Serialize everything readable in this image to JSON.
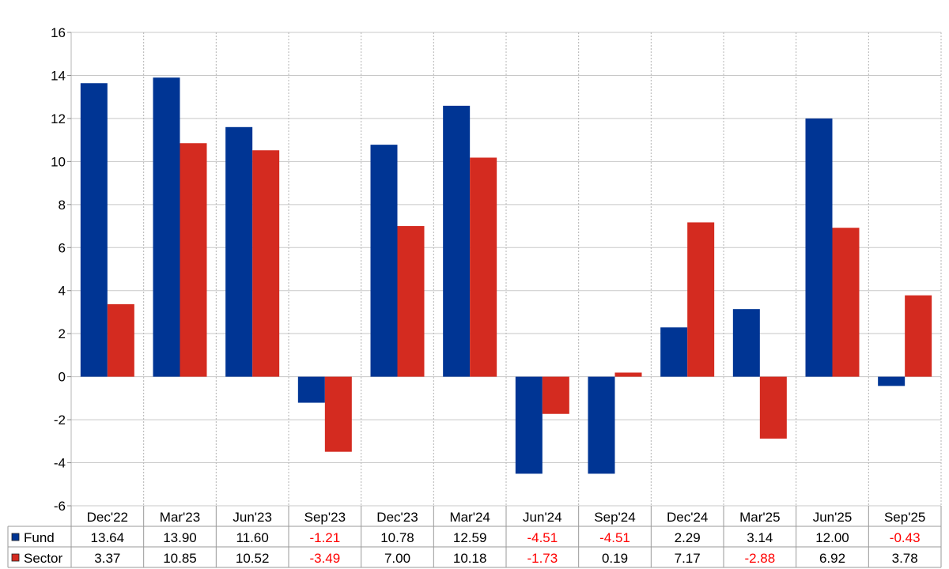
{
  "chart_data": {
    "type": "bar",
    "categories": [
      "Dec'22",
      "Mar'23",
      "Jun'23",
      "Sep'23",
      "Dec'23",
      "Mar'24",
      "Jun'24",
      "Sep'24",
      "Dec'24",
      "Mar'25",
      "Jun'25",
      "Sep'25"
    ],
    "series": [
      {
        "name": "Fund",
        "color": "#003594",
        "values": [
          13.64,
          13.9,
          11.6,
          -1.21,
          10.78,
          12.59,
          -4.51,
          -4.51,
          2.29,
          3.14,
          12.0,
          -0.43
        ],
        "labels": [
          "13.64",
          "13.90",
          "11.60",
          "-1.21",
          "10.78",
          "12.59",
          "-4.51",
          "-4.51",
          "2.29",
          "3.14",
          "12.00",
          "-0.43"
        ]
      },
      {
        "name": "Sector",
        "color": "#d42b20",
        "values": [
          3.37,
          10.85,
          10.52,
          -3.49,
          7.0,
          10.18,
          -1.73,
          0.19,
          7.17,
          -2.88,
          6.92,
          3.78
        ],
        "labels": [
          "3.37",
          "10.85",
          "10.52",
          "-3.49",
          "7.00",
          "10.18",
          "-1.73",
          "0.19",
          "7.17",
          "-2.88",
          "6.92",
          "3.78"
        ]
      }
    ],
    "ylim": [
      -6,
      16
    ],
    "yticks": [
      "-6",
      "-4",
      "-2",
      "0",
      "2",
      "4",
      "6",
      "8",
      "10",
      "12",
      "14",
      "16"
    ],
    "negative_value_color": "#ff0000",
    "grid": true,
    "legend": "data-table-bottom"
  }
}
